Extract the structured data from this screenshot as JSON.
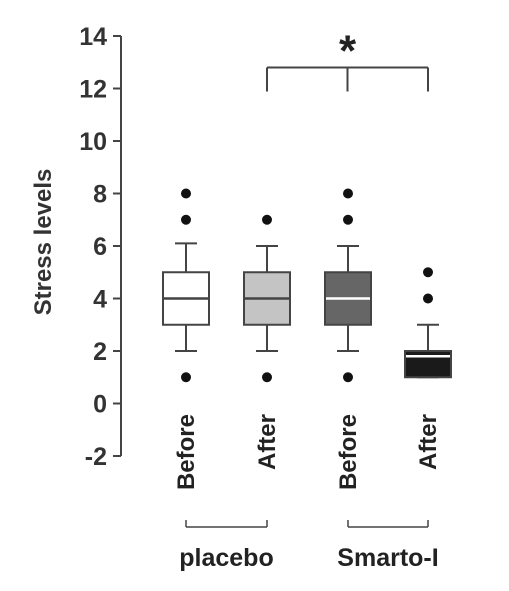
{
  "chart_data": {
    "type": "box",
    "ylabel": "Stress levels",
    "ylim": [
      -2,
      14
    ],
    "yticks": [
      14,
      12,
      10,
      8,
      6,
      4,
      2,
      0,
      -2
    ],
    "categories": [
      "Before",
      "After",
      "Before",
      "After"
    ],
    "groups": [
      {
        "label": "placebo",
        "members": [
          0,
          1
        ]
      },
      {
        "label": "Smarto-I",
        "members": [
          2,
          3
        ]
      }
    ],
    "boxes": [
      {
        "category": "Before",
        "group": "placebo",
        "whisker_low": 2,
        "q1": 3,
        "median": 4,
        "q3": 5,
        "whisker_high": 6.1,
        "outliers": [
          1,
          7,
          8
        ],
        "fill": "#ffffff",
        "median_color": "#444444"
      },
      {
        "category": "After",
        "group": "placebo",
        "whisker_low": 2,
        "q1": 3,
        "median": 4,
        "q3": 5,
        "whisker_high": 6,
        "outliers": [
          1,
          7
        ],
        "fill": "#c4c4c4",
        "median_color": "#444444"
      },
      {
        "category": "Before",
        "group": "Smarto-I",
        "whisker_low": 2,
        "q1": 3,
        "median": 4,
        "q3": 5,
        "whisker_high": 6,
        "outliers": [
          1,
          7,
          8
        ],
        "fill": "#666666",
        "median_color": "#ffffff"
      },
      {
        "category": "After",
        "group": "Smarto-I",
        "whisker_low": 1,
        "q1": 1,
        "median": 1.8,
        "q3": 2,
        "whisker_high": 3,
        "outliers": [
          4,
          5
        ],
        "fill": "#1a1a1a",
        "median_color": "#ffffff"
      }
    ],
    "significance": {
      "from_box": 1,
      "to_box": 3,
      "label": "*",
      "y": 12.8
    },
    "colors": {
      "axis": "#444444",
      "text": "#333333",
      "outlier": "#111111"
    }
  }
}
